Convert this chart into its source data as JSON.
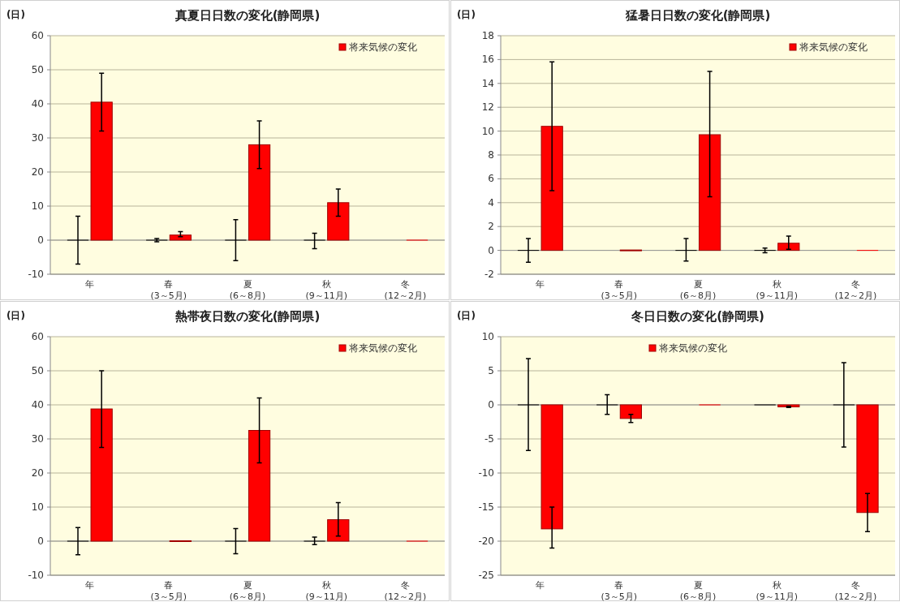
{
  "chart_data": [
    {
      "type": "bar",
      "title": "真夏日日数の変化(静岡県)",
      "ylabel": "(日)",
      "categories": [
        "年",
        "春\n(3～5月)",
        "夏\n(6～8月)",
        "秋\n(9～11月)",
        "冬\n(12～2月)"
      ],
      "ylim": [
        -10,
        60
      ],
      "yticks": [
        -10,
        0,
        10,
        20,
        30,
        40,
        50,
        60
      ],
      "grid": "y",
      "legend": "top right",
      "series": [
        {
          "color": "#000000",
          "values": [
            0,
            0,
            0,
            0,
            null
          ],
          "errors": [
            [
              -7,
              7
            ],
            [
              -0.5,
              0.5
            ],
            [
              -6,
              6
            ],
            [
              -2.5,
              2
            ],
            null
          ]
        },
        {
          "name": "将来気候の変化",
          "color": "#ff0000",
          "values": [
            40.5,
            1.5,
            28,
            11,
            0
          ],
          "errors": [
            [
              32,
              49
            ],
            [
              1,
              2.5
            ],
            [
              21,
              35
            ],
            [
              7,
              15
            ],
            null
          ]
        }
      ]
    },
    {
      "type": "bar",
      "title": "猛暑日日数の変化(静岡県)",
      "ylabel": "(日)",
      "categories": [
        "年",
        "春\n(3～5月)",
        "夏\n(6～8月)",
        "秋\n(9～11月)",
        "冬\n(12～2月)"
      ],
      "ylim": [
        -2,
        18
      ],
      "yticks": [
        -2,
        0,
        2,
        4,
        6,
        8,
        10,
        12,
        14,
        16,
        18
      ],
      "grid": "y",
      "legend": "top right",
      "series": [
        {
          "color": "#000000",
          "values": [
            0,
            null,
            0,
            0,
            null
          ],
          "errors": [
            [
              -1,
              1
            ],
            null,
            [
              -0.9,
              1
            ],
            [
              -0.2,
              0.2
            ],
            null
          ]
        },
        {
          "name": "将来気候の変化",
          "color": "#ff0000",
          "values": [
            10.4,
            0.05,
            9.7,
            0.6,
            0
          ],
          "errors": [
            [
              5,
              15.8
            ],
            null,
            [
              4.5,
              15
            ],
            [
              0.1,
              1.2
            ],
            null
          ]
        }
      ]
    },
    {
      "type": "bar",
      "title": "熱帯夜日数の変化(静岡県)",
      "ylabel": "(日)",
      "categories": [
        "年",
        "春\n(3～5月)",
        "夏\n(6～8月)",
        "秋\n(9～11月)",
        "冬\n(12～2月)"
      ],
      "ylim": [
        -10,
        60
      ],
      "yticks": [
        -10,
        0,
        10,
        20,
        30,
        40,
        50,
        60
      ],
      "grid": "y",
      "legend": "top right",
      "series": [
        {
          "color": "#000000",
          "values": [
            0,
            null,
            0,
            0,
            null
          ],
          "errors": [
            [
              -4,
              4
            ],
            null,
            [
              -3.7,
              3.7
            ],
            [
              -1,
              1.2
            ],
            null
          ]
        },
        {
          "name": "将来気候の変化",
          "color": "#ff0000",
          "values": [
            38.8,
            0.2,
            32.5,
            6.3,
            0
          ],
          "errors": [
            [
              27.5,
              50
            ],
            null,
            [
              23,
              42
            ],
            [
              1.5,
              11.3
            ],
            null
          ]
        }
      ]
    },
    {
      "type": "bar",
      "title": "冬日日数の変化(静岡県)",
      "ylabel": "(日)",
      "categories": [
        "年",
        "春\n(3～5月)",
        "夏\n(6～8月)",
        "秋\n(9～11月)",
        "冬\n(12～2月)"
      ],
      "ylim": [
        -25,
        10
      ],
      "yticks": [
        -25,
        -20,
        -15,
        -10,
        -5,
        0,
        5,
        10
      ],
      "grid": "y",
      "legend": "top",
      "series": [
        {
          "color": "#000000",
          "values": [
            0,
            0,
            null,
            0,
            0
          ],
          "errors": [
            [
              -6.7,
              6.8
            ],
            [
              -1.4,
              1.5
            ],
            null,
            null,
            [
              -6.2,
              6.2
            ]
          ]
        },
        {
          "name": "将来気候の変化",
          "color": "#ff0000",
          "values": [
            -18.2,
            -2,
            0,
            -0.3,
            -15.8
          ],
          "errors": [
            [
              -21,
              -15
            ],
            [
              -2.6,
              -1.4
            ],
            null,
            [
              -0.4,
              -0.2
            ],
            [
              -18.6,
              -13
            ]
          ]
        }
      ]
    }
  ]
}
